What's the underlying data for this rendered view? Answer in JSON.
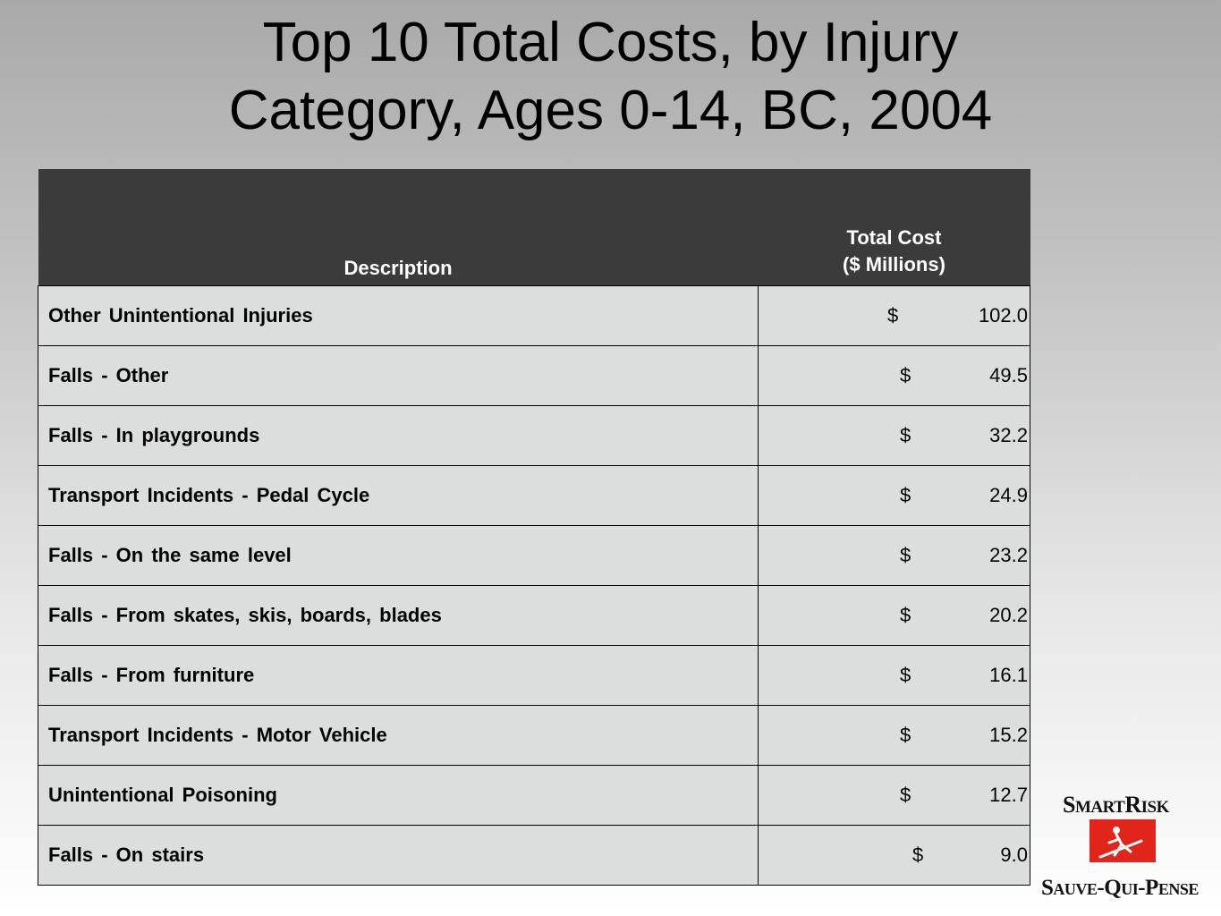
{
  "title_line1": "Top 10 Total Costs, by Injury",
  "title_line2": "Category, Ages 0-14, BC, 2004",
  "table": {
    "header_description": "Description",
    "header_cost_line1": "Total Cost",
    "header_cost_line2": "($ Millions)",
    "rows": [
      {
        "description": "Other Unintentional Injuries",
        "currency": "$",
        "value": "102.0"
      },
      {
        "description": "Falls - Other",
        "currency": "$",
        "value": "49.5"
      },
      {
        "description": "Falls - In playgrounds",
        "currency": "$",
        "value": "32.2"
      },
      {
        "description": "Transport Incidents - Pedal Cycle",
        "currency": "$",
        "value": "24.9"
      },
      {
        "description": "Falls - On the same level",
        "currency": "$",
        "value": "23.2"
      },
      {
        "description": "Falls - From skates, skis, boards, blades",
        "currency": "$",
        "value": "20.2"
      },
      {
        "description": "Falls - From furniture",
        "currency": "$",
        "value": "16.1"
      },
      {
        "description": "Transport Incidents - Motor Vehicle",
        "currency": "$",
        "value": "15.2"
      },
      {
        "description": "Unintentional Poisoning",
        "currency": "$",
        "value": "12.7"
      },
      {
        "description": "Falls - On stairs",
        "currency": "$",
        "value": "9.0"
      }
    ]
  },
  "logo": {
    "top_text": "SMARTRISK",
    "bottom_text": "SAUVE-QUI-PENSE",
    "accent_color": "#e1251b"
  }
}
